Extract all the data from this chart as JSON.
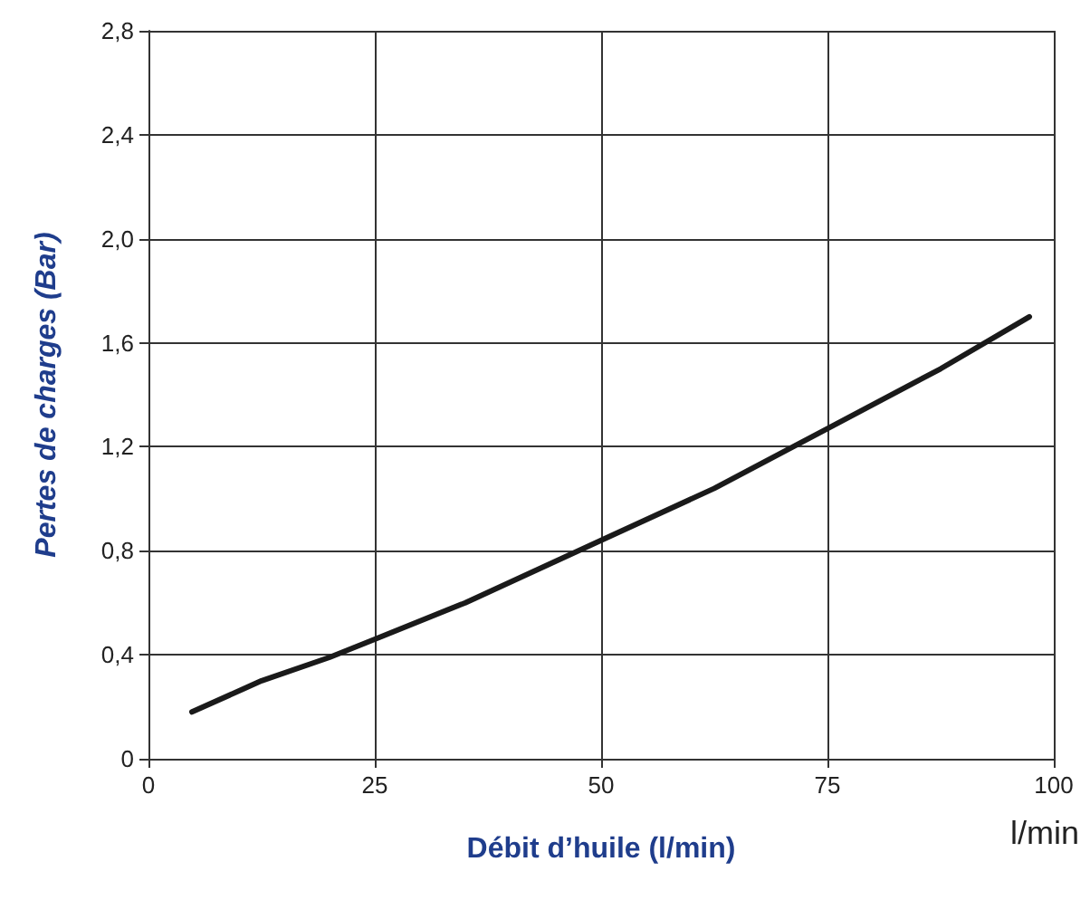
{
  "chart_data": {
    "type": "line",
    "xlabel": "Débit d’huile (l/min)",
    "ylabel": "Pertes de charges (Bar)",
    "annotations": [
      "l/min"
    ],
    "x": [
      4.8,
      12.5,
      20,
      25,
      35,
      50,
      62.5,
      75,
      87.5,
      97.3
    ],
    "series": [
      {
        "color": "#1a1a1a",
        "values": [
          0.18,
          0.3,
          0.39,
          0.46,
          0.6,
          0.84,
          1.04,
          1.27,
          1.5,
          1.7
        ]
      }
    ],
    "xlim": [
      0,
      100
    ],
    "xticks": [
      0,
      25,
      50,
      75,
      100
    ],
    "ylim": [
      0,
      2.8
    ],
    "yticks": [
      0,
      {
        "value": 0.4,
        "label": "0,4"
      },
      {
        "value": 0.8,
        "label": "0,8"
      },
      {
        "value": 1.2,
        "label": "1,2"
      },
      {
        "value": 1.6,
        "label": "1,6"
      },
      {
        "value": 2.0,
        "label": "2,0"
      },
      {
        "value": 2.4,
        "label": "2,4"
      },
      {
        "value": 2.8,
        "label": "2,8"
      }
    ],
    "grid": true,
    "marker": "none",
    "line_style": "solid"
  }
}
